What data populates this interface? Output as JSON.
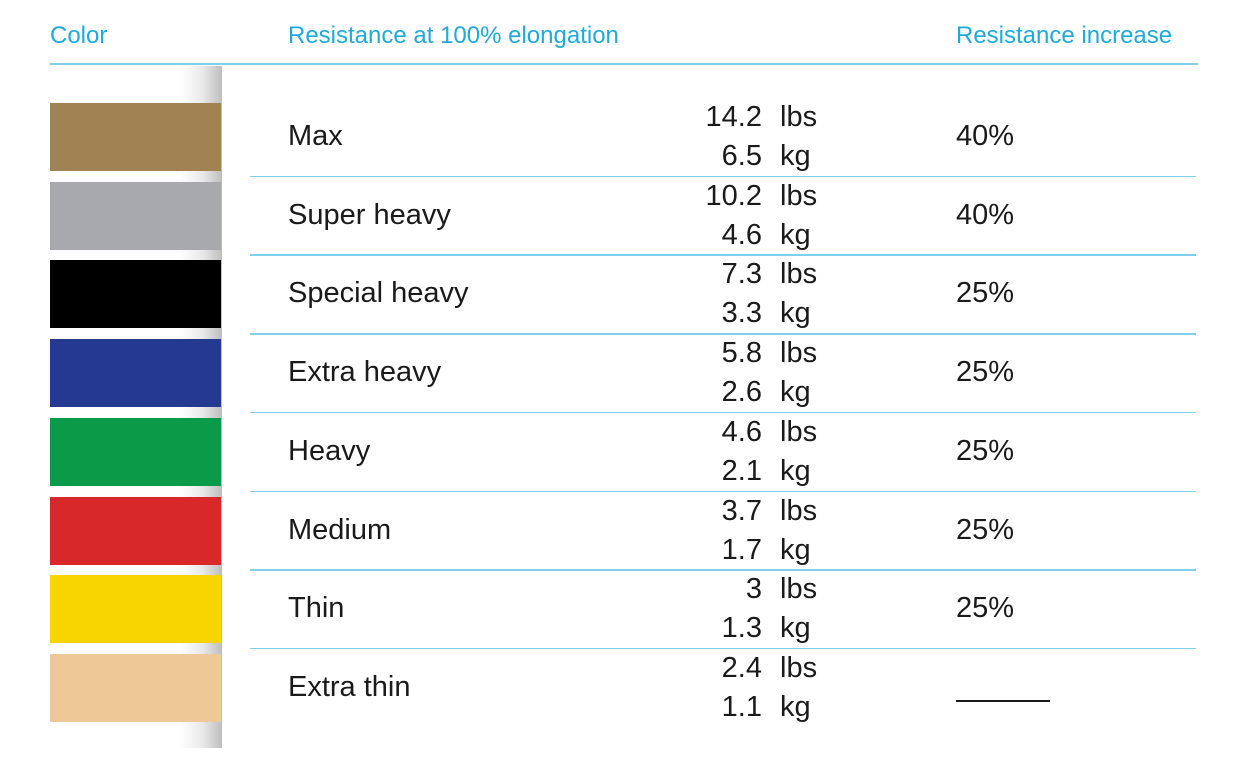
{
  "table": {
    "header": [
      "Color",
      "Resistance at 100% elongation",
      "Resistance increase"
    ],
    "rows": [
      {
        "color": "#a18353",
        "label": "Max",
        "weights": [
          {
            "value": "14.2",
            "unit": "lbs"
          },
          {
            "value": "6.5",
            "unit": "kg"
          }
        ],
        "increase": "40%"
      },
      {
        "color": "#a8a9ad",
        "label": "Super heavy",
        "weights": [
          {
            "value": "10.2",
            "unit": "lbs"
          },
          {
            "value": "4.6",
            "unit": "kg"
          }
        ],
        "increase": "40%"
      },
      {
        "color": "#000000",
        "label": "Special heavy",
        "weights": [
          {
            "value": "7.3",
            "unit": "lbs"
          },
          {
            "value": "3.3",
            "unit": "kg"
          }
        ],
        "increase": "25%"
      },
      {
        "color": "#233a90",
        "label": "Extra heavy",
        "weights": [
          {
            "value": "5.8",
            "unit": "lbs"
          },
          {
            "value": "2.6",
            "unit": "kg"
          }
        ],
        "increase": "25%"
      },
      {
        "color": "#0b9a48",
        "label": "Heavy",
        "weights": [
          {
            "value": "4.6",
            "unit": "lbs"
          },
          {
            "value": "2.1",
            "unit": "kg"
          }
        ],
        "increase": "25%"
      },
      {
        "color": "#d8282a",
        "label": "Medium",
        "weights": [
          {
            "value": "3.7",
            "unit": "lbs"
          },
          {
            "value": "1.7",
            "unit": "kg"
          }
        ],
        "increase": "25%"
      },
      {
        "color": "#f8d400",
        "label": "Thin",
        "weights": [
          {
            "value": "3",
            "unit": "lbs"
          },
          {
            "value": "1.3",
            "unit": "kg"
          }
        ],
        "increase": "25%"
      },
      {
        "color": "#efc897",
        "label": "Extra thin",
        "weights": [
          {
            "value": "2.4",
            "unit": "lbs"
          },
          {
            "value": "1.1",
            "unit": "kg"
          }
        ],
        "increase": null
      }
    ]
  }
}
